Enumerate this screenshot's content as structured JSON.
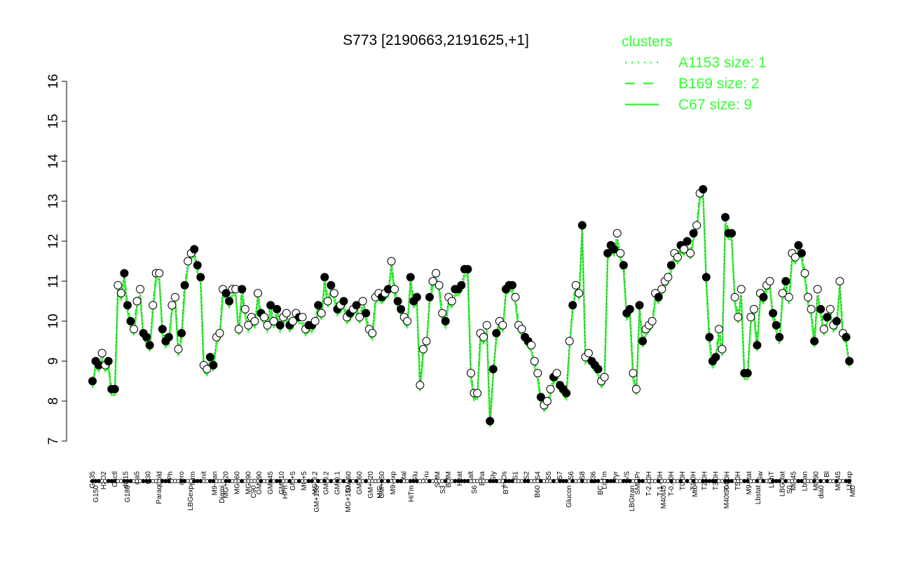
{
  "chart_data": {
    "type": "line",
    "title": "S773 [2190663,2191625,+1]",
    "ylim": [
      7,
      16
    ],
    "yticks": [
      7,
      8,
      9,
      10,
      11,
      12,
      13,
      14,
      15,
      16
    ],
    "xticklabels_top": [
      "G135",
      "H2O2",
      "Oxctl",
      "dia15",
      "dia5",
      "C30",
      "Cold",
      "LPh",
      "aero",
      "ferm",
      "nit",
      "M9-tran",
      "MG+120",
      "MG+60",
      "MG+90",
      "GM+90",
      "GM+45",
      "GM+10",
      "GM+5",
      "MG+5",
      "MG-0.2",
      "GM-0.2",
      "GM-0.1",
      "GM-60",
      "GM+60",
      "GM+120",
      "GM+150",
      "M9-exp",
      "Mal",
      "Glu",
      "Fru",
      "SMM",
      "BMM",
      "Heat",
      "Salt",
      "Etha",
      "Gly",
      "HiOs",
      "S1",
      "S2",
      "S4",
      "S5",
      "S7",
      "S6",
      "S8",
      "B36",
      "LoTm",
      "Pyr",
      "G/S",
      "SMMPr",
      "T-2.40H",
      "T-1.40H",
      "T-0.40H",
      "T0.0H",
      "T1.0H",
      "T2.0H",
      "T3.0H",
      "T4.0H",
      "T5.0H",
      "M9-stat",
      "Sw",
      "LPhT",
      "LBGstat",
      "M0t45",
      "Lbtran",
      "M0t90",
      "Bl",
      "M0t45",
      "Lbexp"
    ],
    "xticklabels_bottom": [
      "G150",
      "G180",
      "Paraq",
      "LBGexp",
      "Diami",
      "C90",
      "HPh",
      "GM+150",
      "MG+150",
      "M/G",
      "HiTm",
      "S3",
      "S6",
      "BT",
      "B60",
      "Glucon",
      "BC",
      "LBGtran",
      "M40t45",
      "Mt0",
      "M40t90",
      "Lbstat",
      "S0",
      "dia0",
      "Mt0"
    ],
    "y_range_note": "expression values between about 7.5 and 13.3",
    "series": [
      {
        "name": "A1153 size: 1",
        "style": "dotted",
        "color": "#33ff33"
      },
      {
        "name": "B169 size: 2",
        "style": "dashed",
        "color": "#33ff33"
      },
      {
        "name": "C67 size: 9",
        "style": "solid",
        "color": "#33ff33"
      }
    ],
    "points": [
      [
        8.5,
        0
      ],
      [
        9.0,
        0
      ],
      [
        8.9,
        0
      ],
      [
        9.2,
        1
      ],
      [
        8.9,
        1
      ],
      [
        9.0,
        0
      ],
      [
        8.3,
        0
      ],
      [
        8.3,
        0
      ],
      [
        10.9,
        1
      ],
      [
        10.7,
        1
      ],
      [
        11.2,
        0
      ],
      [
        10.4,
        0
      ],
      [
        10.0,
        0
      ],
      [
        9.8,
        1
      ],
      [
        10.5,
        1
      ],
      [
        10.8,
        1
      ],
      [
        9.7,
        0
      ],
      [
        9.6,
        0
      ],
      [
        9.4,
        0
      ],
      [
        10.4,
        1
      ],
      [
        11.2,
        1
      ],
      [
        11.2,
        1
      ],
      [
        9.8,
        0
      ],
      [
        9.5,
        0
      ],
      [
        9.6,
        0
      ],
      [
        10.4,
        1
      ],
      [
        10.6,
        1
      ],
      [
        9.3,
        1
      ],
      [
        9.7,
        0
      ],
      [
        10.9,
        0
      ],
      [
        11.5,
        1
      ],
      [
        11.7,
        1
      ],
      [
        11.8,
        0
      ],
      [
        11.4,
        0
      ],
      [
        11.1,
        0
      ],
      [
        8.9,
        1
      ],
      [
        8.8,
        1
      ],
      [
        9.1,
        0
      ],
      [
        8.9,
        0
      ],
      [
        9.6,
        1
      ],
      [
        9.7,
        1
      ],
      [
        10.8,
        1
      ],
      [
        10.7,
        0
      ],
      [
        10.5,
        0
      ],
      [
        10.8,
        1
      ],
      [
        10.8,
        1
      ],
      [
        9.8,
        1
      ],
      [
        10.8,
        0
      ],
      [
        10.3,
        1
      ],
      [
        9.9,
        1
      ],
      [
        10.1,
        1
      ],
      [
        10.0,
        1
      ],
      [
        10.7,
        1
      ],
      [
        10.2,
        0
      ],
      [
        10.1,
        1
      ],
      [
        9.9,
        1
      ],
      [
        10.4,
        0
      ],
      [
        10.0,
        1
      ],
      [
        10.3,
        0
      ],
      [
        9.9,
        0
      ],
      [
        10.1,
        1
      ],
      [
        10.2,
        1
      ],
      [
        9.9,
        0
      ],
      [
        10.0,
        1
      ],
      [
        10.2,
        1
      ],
      [
        10.1,
        0
      ],
      [
        10.1,
        1
      ],
      [
        9.8,
        1
      ],
      [
        9.9,
        0
      ],
      [
        9.9,
        0
      ],
      [
        10.0,
        1
      ],
      [
        10.4,
        0
      ],
      [
        10.2,
        1
      ],
      [
        11.1,
        0
      ],
      [
        10.5,
        1
      ],
      [
        10.9,
        0
      ],
      [
        10.7,
        1
      ],
      [
        10.3,
        0
      ],
      [
        10.4,
        1
      ],
      [
        10.5,
        0
      ],
      [
        10.1,
        1
      ],
      [
        10.2,
        0
      ],
      [
        10.3,
        1
      ],
      [
        10.4,
        0
      ],
      [
        10.1,
        1
      ],
      [
        10.5,
        1
      ],
      [
        10.2,
        0
      ],
      [
        9.8,
        1
      ],
      [
        9.7,
        1
      ],
      [
        10.6,
        1
      ],
      [
        10.7,
        1
      ],
      [
        10.6,
        0
      ],
      [
        10.7,
        1
      ],
      [
        10.8,
        0
      ],
      [
        11.5,
        1
      ],
      [
        10.8,
        1
      ],
      [
        10.5,
        0
      ],
      [
        10.3,
        0
      ],
      [
        10.1,
        1
      ],
      [
        10.0,
        1
      ],
      [
        11.1,
        0
      ],
      [
        10.5,
        0
      ],
      [
        10.6,
        0
      ],
      [
        8.4,
        1
      ],
      [
        9.3,
        1
      ],
      [
        9.5,
        1
      ],
      [
        10.6,
        0
      ],
      [
        11.0,
        1
      ],
      [
        11.2,
        1
      ],
      [
        10.9,
        1
      ],
      [
        10.2,
        1
      ],
      [
        10.0,
        0
      ],
      [
        10.6,
        1
      ],
      [
        10.5,
        1
      ],
      [
        10.8,
        0
      ],
      [
        10.8,
        0
      ],
      [
        10.9,
        0
      ],
      [
        11.3,
        0
      ],
      [
        11.3,
        0
      ],
      [
        8.7,
        1
      ],
      [
        8.2,
        1
      ],
      [
        8.2,
        1
      ],
      [
        9.7,
        1
      ],
      [
        9.6,
        1
      ],
      [
        9.9,
        1
      ],
      [
        7.5,
        0
      ],
      [
        8.8,
        0
      ],
      [
        9.7,
        0
      ],
      [
        10.0,
        1
      ],
      [
        9.9,
        1
      ],
      [
        10.8,
        0
      ],
      [
        10.9,
        0
      ],
      [
        10.9,
        0
      ],
      [
        10.6,
        1
      ],
      [
        9.9,
        1
      ],
      [
        9.8,
        1
      ],
      [
        9.6,
        0
      ],
      [
        9.5,
        0
      ],
      [
        9.4,
        1
      ],
      [
        9.0,
        1
      ],
      [
        8.7,
        1
      ],
      [
        8.1,
        0
      ],
      [
        7.9,
        1
      ],
      [
        8.0,
        1
      ],
      [
        8.3,
        1
      ],
      [
        8.6,
        0
      ],
      [
        8.7,
        1
      ],
      [
        8.4,
        0
      ],
      [
        8.3,
        0
      ],
      [
        8.2,
        0
      ],
      [
        9.5,
        1
      ],
      [
        10.4,
        0
      ],
      [
        10.9,
        1
      ],
      [
        10.7,
        1
      ],
      [
        12.4,
        0
      ],
      [
        9.1,
        1
      ],
      [
        9.2,
        1
      ],
      [
        9.0,
        0
      ],
      [
        8.9,
        0
      ],
      [
        8.8,
        0
      ],
      [
        8.5,
        1
      ],
      [
        8.6,
        1
      ],
      [
        11.7,
        0
      ],
      [
        11.9,
        0
      ],
      [
        11.8,
        0
      ],
      [
        12.2,
        1
      ],
      [
        11.7,
        1
      ],
      [
        11.4,
        0
      ],
      [
        10.2,
        0
      ],
      [
        10.3,
        0
      ],
      [
        8.7,
        1
      ],
      [
        8.3,
        1
      ],
      [
        10.4,
        0
      ],
      [
        9.5,
        0
      ],
      [
        9.8,
        1
      ],
      [
        9.9,
        1
      ],
      [
        10.0,
        1
      ],
      [
        10.7,
        1
      ],
      [
        10.6,
        0
      ],
      [
        10.8,
        1
      ],
      [
        11.0,
        1
      ],
      [
        11.1,
        1
      ],
      [
        11.4,
        0
      ],
      [
        11.7,
        1
      ],
      [
        11.6,
        1
      ],
      [
        11.9,
        0
      ],
      [
        11.8,
        1
      ],
      [
        12.0,
        0
      ],
      [
        11.7,
        1
      ],
      [
        12.2,
        0
      ],
      [
        12.4,
        1
      ],
      [
        13.2,
        1
      ],
      [
        13.3,
        0
      ],
      [
        11.1,
        0
      ],
      [
        9.6,
        0
      ],
      [
        9.0,
        0
      ],
      [
        9.1,
        0
      ],
      [
        9.8,
        1
      ],
      [
        9.3,
        1
      ],
      [
        12.6,
        0
      ],
      [
        12.2,
        0
      ],
      [
        12.2,
        0
      ],
      [
        10.6,
        1
      ],
      [
        10.1,
        1
      ],
      [
        10.8,
        1
      ],
      [
        8.7,
        0
      ],
      [
        8.7,
        0
      ],
      [
        10.1,
        1
      ],
      [
        10.3,
        1
      ],
      [
        9.4,
        0
      ],
      [
        10.7,
        1
      ],
      [
        10.6,
        0
      ],
      [
        10.9,
        1
      ],
      [
        11.0,
        1
      ],
      [
        10.2,
        0
      ],
      [
        9.9,
        0
      ],
      [
        9.6,
        0
      ],
      [
        10.7,
        1
      ],
      [
        11.0,
        0
      ],
      [
        10.6,
        1
      ],
      [
        11.7,
        1
      ],
      [
        11.6,
        1
      ],
      [
        11.9,
        0
      ],
      [
        11.7,
        0
      ],
      [
        11.2,
        1
      ],
      [
        10.6,
        1
      ],
      [
        10.3,
        1
      ],
      [
        9.5,
        0
      ],
      [
        10.8,
        1
      ],
      [
        10.3,
        0
      ],
      [
        9.8,
        1
      ],
      [
        10.1,
        0
      ],
      [
        10.3,
        1
      ],
      [
        9.9,
        1
      ],
      [
        10.0,
        0
      ],
      [
        11.0,
        1
      ],
      [
        9.7,
        1
      ],
      [
        9.6,
        0
      ],
      [
        9.0,
        0
      ]
    ],
    "legend_title": "clusters",
    "legend_position": "top-right",
    "line_color": "#33ff33"
  }
}
